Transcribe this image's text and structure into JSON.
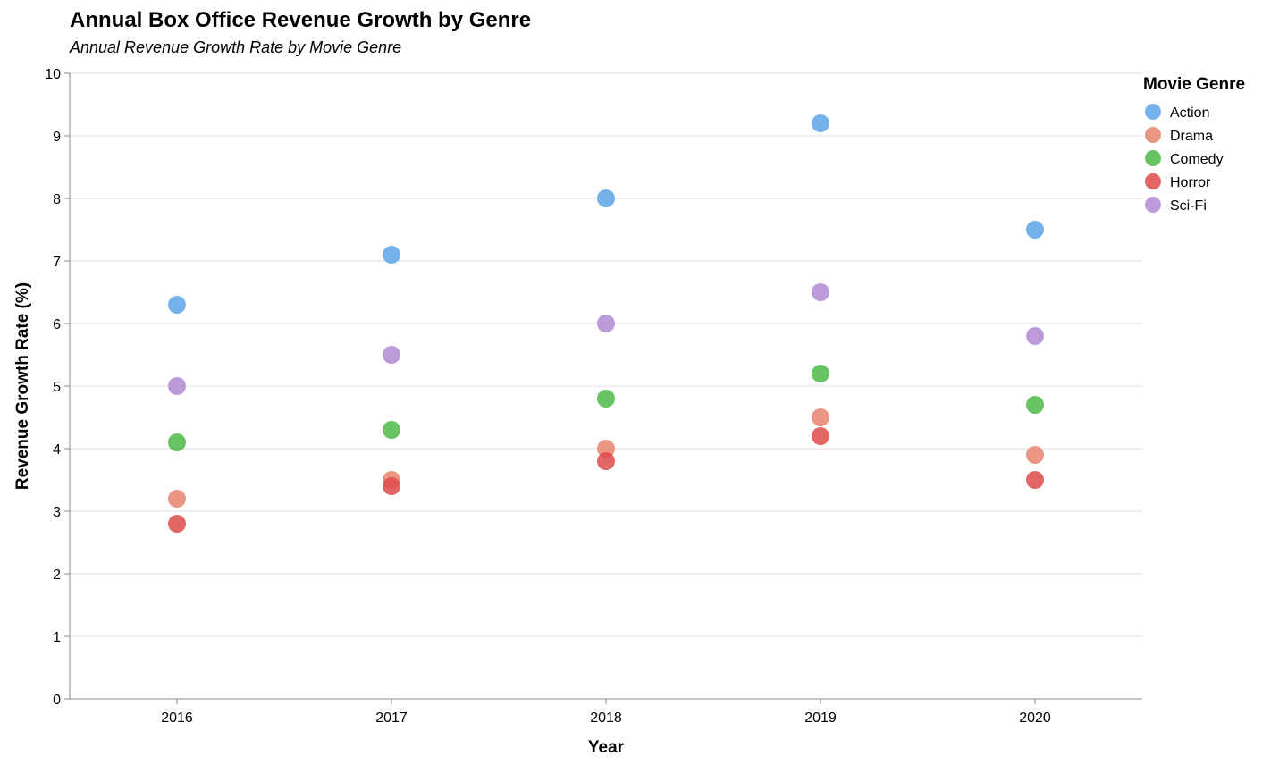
{
  "chart_data": {
    "type": "scatter",
    "title": "Annual Box Office Revenue Growth by Genre",
    "subtitle": "Annual Revenue Growth Rate by Movie Genre",
    "xlabel": "Year",
    "ylabel": "Revenue Growth Rate (%)",
    "x": [
      "2016",
      "2017",
      "2018",
      "2019",
      "2020"
    ],
    "ylim": [
      0,
      10
    ],
    "yticks": [
      "0",
      "1",
      "2",
      "3",
      "4",
      "5",
      "6",
      "7",
      "8",
      "9",
      "10"
    ],
    "grid": true,
    "legend": {
      "title": "Movie Genre",
      "position": "top-right"
    },
    "series": [
      {
        "name": "Action",
        "color": "#5DA5E8",
        "values": [
          6.3,
          7.1,
          8.0,
          9.2,
          7.5
        ]
      },
      {
        "name": "Drama",
        "color": "#E8846E",
        "values": [
          3.2,
          3.5,
          4.0,
          4.5,
          3.9
        ]
      },
      {
        "name": "Comedy",
        "color": "#4DB848",
        "values": [
          4.1,
          4.3,
          4.8,
          5.2,
          4.7
        ]
      },
      {
        "name": "Horror",
        "color": "#DD4B4B",
        "values": [
          2.8,
          3.4,
          3.8,
          4.2,
          3.5
        ]
      },
      {
        "name": "Sci-Fi",
        "color": "#AF8BD2",
        "values": [
          5.0,
          5.5,
          6.0,
          6.5,
          5.8
        ]
      }
    ]
  }
}
